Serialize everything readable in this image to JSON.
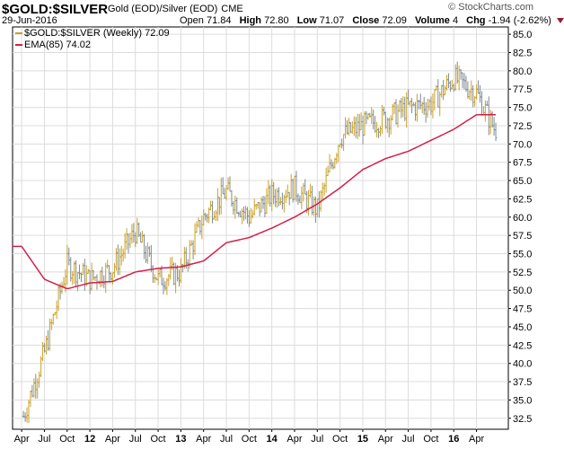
{
  "header": {
    "symbol": "$GOLD:$SILVER",
    "description": "Gold (EOD)/Silver (EOD)",
    "exchange": "CME",
    "date": "29-Jun-2016",
    "logo": "© StockCharts.com",
    "open_label": "Open",
    "open": "71.84",
    "high_label": "High",
    "high": "72.80",
    "low_label": "Low",
    "low": "71.07",
    "close_label": "Close",
    "close": "72.09",
    "volume_label": "Volume",
    "volume": "4",
    "chg_label": "Chg",
    "chg": "-1.94 (-2.62%)"
  },
  "legend": {
    "price": "$GOLD:$SILVER (Weekly) 72.09",
    "ema": "EMA(85) 74.02"
  },
  "colors": {
    "up_bar": "#c9a227",
    "down_bar": "#7f8c97",
    "ema_line": "#d2204a",
    "grid": "#dcdcdc",
    "axis": "#000000"
  },
  "chart_data": {
    "type": "line",
    "ylim": [
      31,
      86
    ],
    "y_ticks": [
      "32.5",
      "35.0",
      "37.5",
      "40.0",
      "42.5",
      "45.0",
      "47.5",
      "50.0",
      "52.5",
      "55.0",
      "57.5",
      "60.0",
      "62.5",
      "65.0",
      "67.5",
      "70.0",
      "72.5",
      "75.0",
      "77.5",
      "80.0",
      "82.5",
      "85.0"
    ],
    "x_ticks": [
      "Apr",
      "Jul",
      "Oct",
      "12",
      "Apr",
      "Jul",
      "Oct",
      "13",
      "Apr",
      "Jul",
      "Oct",
      "14",
      "Apr",
      "Jul",
      "Oct",
      "15",
      "Apr",
      "Jul",
      "Oct",
      "16",
      "Apr"
    ],
    "x": [
      2011.25,
      2011.5,
      2011.75,
      2012.0,
      2012.25,
      2012.5,
      2012.75,
      2013.0,
      2013.25,
      2013.5,
      2013.75,
      2014.0,
      2014.25,
      2014.5,
      2014.75,
      2015.0,
      2015.25,
      2015.5,
      2015.75,
      2016.0,
      2016.25,
      2016.45
    ],
    "series": [
      {
        "name": "$GOLD:$SILVER (Weekly)",
        "values": [
          32.0,
          41.5,
          53.5,
          51.5,
          53.0,
          58.0,
          51.5,
          52.5,
          60.0,
          63.5,
          60.0,
          63.0,
          64.0,
          61.0,
          71.0,
          72.5,
          73.5,
          75.0,
          75.5,
          79.0,
          77.0,
          72.0
        ]
      },
      {
        "name": "EMA(85)",
        "values": [
          56.0,
          51.5,
          50.2,
          51.0,
          51.2,
          52.5,
          53.0,
          53.2,
          54.0,
          56.5,
          57.2,
          58.5,
          60.0,
          61.8,
          64.0,
          66.5,
          68.0,
          69.0,
          70.5,
          72.0,
          74.0,
          74.0
        ]
      }
    ]
  }
}
